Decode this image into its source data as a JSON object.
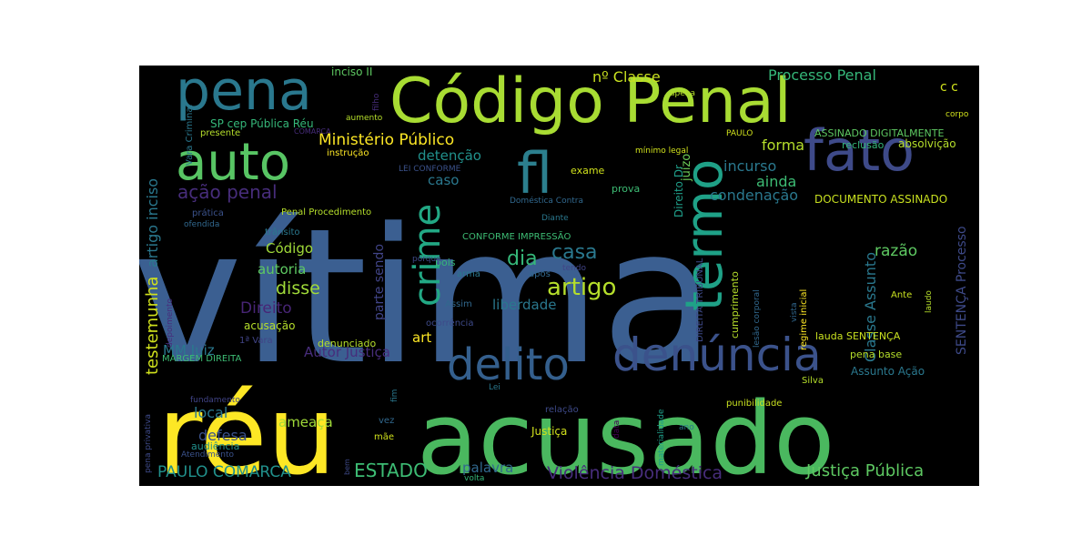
{
  "chart_data": {
    "type": "wordcloud",
    "background": "#000000",
    "colormap": "viridis",
    "words": [
      {
        "text": "vítima",
        "weight": 100,
        "color": "#3b5f91"
      },
      {
        "text": "réu",
        "weight": 62,
        "color": "#fde725"
      },
      {
        "text": "acusado",
        "weight": 60,
        "color": "#4ab85f"
      },
      {
        "text": "Código Penal",
        "weight": 50,
        "color": "#a8dc33"
      },
      {
        "text": "pena",
        "weight": 42,
        "color": "#2a788e"
      },
      {
        "text": "fato",
        "weight": 38,
        "color": "#3e4a89"
      },
      {
        "text": "fl",
        "weight": 37,
        "color": "#2c7f8e"
      },
      {
        "text": "auto",
        "weight": 36,
        "color": "#58c564"
      },
      {
        "text": "termo",
        "weight": 34,
        "color": "#1fa187"
      },
      {
        "text": "delito",
        "weight": 33,
        "color": "#345f8d"
      },
      {
        "text": "denúncia",
        "weight": 32,
        "color": "#3b528b"
      },
      {
        "text": "crime",
        "weight": 26,
        "color": "#22a884"
      },
      {
        "text": "artigo",
        "weight": 18,
        "color": "#b5de2b"
      },
      {
        "text": "dia",
        "weight": 16,
        "color": "#35b779"
      },
      {
        "text": "casa",
        "weight": 15,
        "color": "#2a788e"
      },
      {
        "text": "ação penal",
        "weight": 14,
        "color": "#472d7b"
      },
      {
        "text": "Ministério Público",
        "weight": 12,
        "color": "#fde725"
      },
      {
        "text": "Violência Doméstica",
        "weight": 12,
        "color": "#472d7b"
      },
      {
        "text": "ESTADO",
        "weight": 12,
        "color": "#3dbc74"
      },
      {
        "text": "Justiça Pública",
        "weight": 12,
        "color": "#5ec962"
      },
      {
        "text": "PAULO COMARCA",
        "weight": 11,
        "color": "#21918c"
      },
      {
        "text": "testemunha",
        "weight": 12,
        "color": "#d0e11c"
      },
      {
        "text": "artigo inciso",
        "weight": 12,
        "color": "#2a788e"
      },
      {
        "text": "Processo Penal",
        "weight": 11,
        "color": "#35b779"
      },
      {
        "text": "nº Classe",
        "weight": 11,
        "color": "#c8e020"
      },
      {
        "text": "incurso",
        "weight": 11,
        "color": "#2a788e"
      },
      {
        "text": "forma",
        "weight": 11,
        "color": "#b5de2b"
      },
      {
        "text": "condenação",
        "weight": 11,
        "color": "#2a788e"
      },
      {
        "text": "ainda",
        "weight": 11,
        "color": "#3dbc74"
      },
      {
        "text": "disse",
        "weight": 12,
        "color": "#a0da39"
      },
      {
        "text": "Direito",
        "weight": 11,
        "color": "#482576"
      },
      {
        "text": "autoria",
        "weight": 11,
        "color": "#5ec962"
      },
      {
        "text": "razão",
        "weight": 11,
        "color": "#5ec962"
      },
      {
        "text": "Classe Assunto",
        "weight": 11,
        "color": "#2a788e"
      },
      {
        "text": "SENTENÇA Processo",
        "weight": 10,
        "color": "#3e4a89"
      },
      {
        "text": "liberdade",
        "weight": 10,
        "color": "#2a788e"
      },
      {
        "text": "detenção",
        "weight": 10,
        "color": "#21918c"
      },
      {
        "text": "caso",
        "weight": 10,
        "color": "#2a788e"
      },
      {
        "text": "parte sendo",
        "weight": 9,
        "color": "#414487"
      },
      {
        "text": "MM Juiz",
        "weight": 10,
        "color": "#2a788e"
      },
      {
        "text": "Autor Justiça",
        "weight": 10,
        "color": "#472d7b"
      },
      {
        "text": "ameaça",
        "weight": 10,
        "color": "#a0da39"
      },
      {
        "text": "local",
        "weight": 10,
        "color": "#2a788e"
      },
      {
        "text": "defesa",
        "weight": 10,
        "color": "#3b528b"
      },
      {
        "text": "palavra",
        "weight": 10,
        "color": "#31688e"
      },
      {
        "text": "art",
        "weight": 10,
        "color": "#fde725"
      },
      {
        "text": "DOCUMENTO ASSINADO",
        "weight": 8,
        "color": "#c8e020"
      },
      {
        "text": "ASSINADO DIGITALMENTE",
        "weight": 7,
        "color": "#5ec962"
      },
      {
        "text": "reclusão",
        "weight": 7,
        "color": "#35b779"
      },
      {
        "text": "absolvição",
        "weight": 7,
        "color": "#b5de2b"
      },
      {
        "text": "juízo",
        "weight": 8,
        "color": "#6ece58"
      },
      {
        "text": "Direito Dr",
        "weight": 7,
        "color": "#1f9e89"
      },
      {
        "text": "exame",
        "weight": 7,
        "color": "#d0e11c"
      },
      {
        "text": "prova",
        "weight": 7,
        "color": "#3dbc74"
      },
      {
        "text": "mínimo legal",
        "weight": 6,
        "color": "#d0e11c"
      },
      {
        "text": "PAULO",
        "weight": 6,
        "color": "#d0e11c"
      },
      {
        "text": "Doméstica Contra",
        "weight": 6,
        "color": "#31688e"
      },
      {
        "text": "Diante",
        "weight": 6,
        "color": "#2a788e"
      },
      {
        "text": "LEI CONFORME",
        "weight": 6,
        "color": "#3b528b"
      },
      {
        "text": "CONFORME IMPRESSÃO",
        "weight": 6,
        "color": "#3dbc74"
      },
      {
        "text": "DIREITA TRIBUNAL",
        "weight": 6,
        "color": "#3e4a89"
      },
      {
        "text": "Código",
        "weight": 9,
        "color": "#a0da39"
      },
      {
        "text": "trânsito",
        "weight": 6,
        "color": "#2a788e"
      },
      {
        "text": "Penal Procedimento",
        "weight": 6,
        "color": "#b5de2b"
      },
      {
        "text": "prática",
        "weight": 6,
        "color": "#3b528b"
      },
      {
        "text": "ofendida",
        "weight": 6,
        "color": "#31688e"
      },
      {
        "text": "SP cep Pública Réu",
        "weight": 7,
        "color": "#35b779"
      },
      {
        "text": "Vara Criminal",
        "weight": 6,
        "color": "#2a788e"
      },
      {
        "text": "presente",
        "weight": 6,
        "color": "#b5de2b"
      },
      {
        "text": "COMARCA",
        "weight": 5,
        "color": "#472d7b"
      },
      {
        "text": "instrução",
        "weight": 6,
        "color": "#fde725"
      },
      {
        "text": "aumento",
        "weight": 5,
        "color": "#b5de2b"
      },
      {
        "text": "inciso II",
        "weight": 6,
        "color": "#5ec962"
      },
      {
        "text": "filho",
        "weight": 5,
        "color": "#472d7b"
      },
      {
        "text": "apena",
        "weight": 5,
        "color": "#b5de2b"
      },
      {
        "text": "corpo",
        "weight": 5,
        "color": "#d0e11c"
      },
      {
        "text": "c c",
        "weight": 8,
        "color": "#d0e11c"
      },
      {
        "text": "pois",
        "weight": 6,
        "color": "#35b779"
      },
      {
        "text": "porque",
        "weight": 6,
        "color": "#3e4a89"
      },
      {
        "text": "arma",
        "weight": 6,
        "color": "#2a788e"
      },
      {
        "text": "após",
        "weight": 6,
        "color": "#31688e"
      },
      {
        "text": "tendo",
        "weight": 6,
        "color": "#414487"
      },
      {
        "text": "Assim",
        "weight": 6,
        "color": "#31688e"
      },
      {
        "text": "ocorrência",
        "weight": 6,
        "color": "#3e4a89"
      },
      {
        "text": "acusação",
        "weight": 7,
        "color": "#b5de2b"
      },
      {
        "text": "denunciado",
        "weight": 7,
        "color": "#b5de2b"
      },
      {
        "text": "1ª Vara",
        "weight": 6,
        "color": "#414487"
      },
      {
        "text": "depoimento",
        "weight": 5,
        "color": "#472d7b"
      },
      {
        "text": "MARGEM DIREITA",
        "weight": 6,
        "color": "#3dbc74"
      },
      {
        "text": "fundamento",
        "weight": 5,
        "color": "#414487"
      },
      {
        "text": "audiência",
        "weight": 6,
        "color": "#21918c"
      },
      {
        "text": "Atendimento",
        "weight": 5,
        "color": "#3b528b"
      },
      {
        "text": "pena privativa",
        "weight": 5,
        "color": "#3e4a89"
      },
      {
        "text": "bem",
        "weight": 5,
        "color": "#3e4a89"
      },
      {
        "text": "Lei",
        "weight": 5,
        "color": "#2a788e"
      },
      {
        "text": "fim",
        "weight": 5,
        "color": "#2a788e"
      },
      {
        "text": "vez",
        "weight": 6,
        "color": "#31688e"
      },
      {
        "text": "mãe",
        "weight": 6,
        "color": "#d0e11c"
      },
      {
        "text": "volta",
        "weight": 5,
        "color": "#35b779"
      },
      {
        "text": "relação",
        "weight": 6,
        "color": "#3e4a89"
      },
      {
        "text": "Justiça",
        "weight": 6,
        "color": "#d0e11c"
      },
      {
        "text": "data",
        "weight": 5,
        "color": "#440154"
      },
      {
        "text": "materialidade",
        "weight": 5,
        "color": "#1f9e89"
      },
      {
        "text": "ano",
        "weight": 5,
        "color": "#2a788e"
      },
      {
        "text": "cumprimento",
        "weight": 6,
        "color": "#b5de2b"
      },
      {
        "text": "lesão corporal",
        "weight": 5,
        "color": "#31688e"
      },
      {
        "text": "vista",
        "weight": 5,
        "color": "#31688e"
      },
      {
        "text": "regime inicial",
        "weight": 5,
        "color": "#fde725"
      },
      {
        "text": "punibilidade",
        "weight": 6,
        "color": "#c8e020"
      },
      {
        "text": "Silva",
        "weight": 6,
        "color": "#b5de2b"
      },
      {
        "text": "laudo",
        "weight": 5,
        "color": "#b5de2b"
      },
      {
        "text": "Ante",
        "weight": 6,
        "color": "#c8e020"
      },
      {
        "text": "lauda SENTENÇA",
        "weight": 7,
        "color": "#c8e020"
      },
      {
        "text": "pena base",
        "weight": 7,
        "color": "#b5de2b"
      },
      {
        "text": "Assunto Ação",
        "weight": 7,
        "color": "#2a788e"
      }
    ]
  }
}
